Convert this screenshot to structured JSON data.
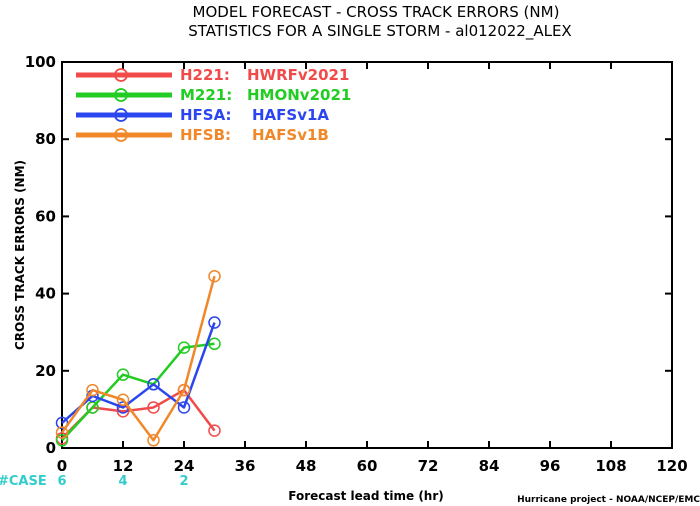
{
  "titles": {
    "line1": "MODEL FORECAST - CROSS TRACK ERRORS (NM)",
    "line2": "STATISTICS FOR A SINGLE STORM - al012022_ALEX"
  },
  "xlabel": "Forecast lead time (hr)",
  "ylabel": "CROSS TRACK ERRORS (NM)",
  "credit": "Hurricane project - NOAA/NCEP/EMC",
  "case_label": "#CASE",
  "colors": {
    "case": "#33cccc",
    "case_label": "#33cccc",
    "axis": "#000000"
  },
  "chart_data": {
    "type": "line",
    "xlim": [
      0,
      120
    ],
    "ylim": [
      0,
      100
    ],
    "xticks": [
      0,
      12,
      24,
      36,
      48,
      60,
      72,
      84,
      96,
      108,
      120
    ],
    "yticks": [
      0,
      20,
      40,
      60,
      80,
      100
    ],
    "grid": false,
    "legend_position": "top-left",
    "series": [
      {
        "name": "H221:",
        "desc": "HWRFv2021",
        "color": "#f04a4a",
        "x": [
          0,
          6,
          12,
          18,
          24,
          30
        ],
        "y": [
          2.5,
          10.5,
          9.5,
          10.5,
          15,
          4.5
        ]
      },
      {
        "name": "M221:",
        "desc": "HMONv2021",
        "color": "#22cc22",
        "x": [
          0,
          6,
          12,
          18,
          24,
          30
        ],
        "y": [
          2,
          10.5,
          19,
          16.5,
          26,
          27
        ]
      },
      {
        "name": "HFSA:",
        "desc": "HAFSv1A",
        "color": "#2b46ee",
        "x": [
          0,
          6,
          12,
          18,
          24,
          30
        ],
        "y": [
          6.5,
          13.5,
          10.5,
          16.5,
          10.5,
          32.5
        ]
      },
      {
        "name": "HFSB:",
        "desc": "HAFSv1B",
        "color": "#f0882a",
        "x": [
          0,
          6,
          12,
          18,
          24,
          30
        ],
        "y": [
          4,
          15,
          12.5,
          2,
          15,
          44.5
        ]
      }
    ],
    "cases": [
      {
        "x": 0,
        "label": "6"
      },
      {
        "x": 12,
        "label": "4"
      },
      {
        "x": 24,
        "label": "2"
      }
    ]
  }
}
